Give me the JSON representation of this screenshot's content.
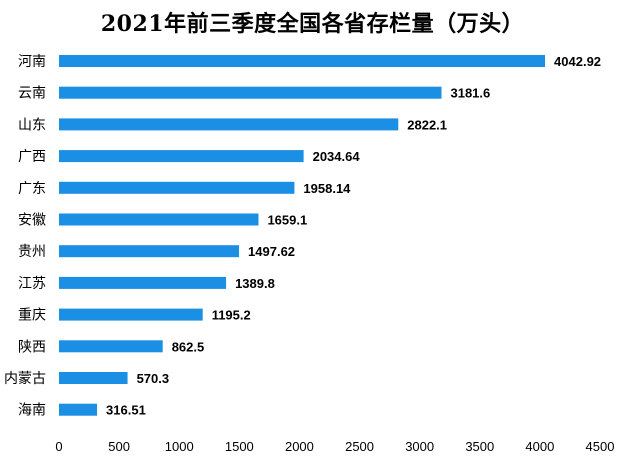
{
  "chart_data": {
    "type": "bar",
    "orientation": "horizontal",
    "title": "2021年前三季度全国各省存栏量（万头）",
    "categories": [
      "河南",
      "云南",
      "山东",
      "广西",
      "广东",
      "安徽",
      "贵州",
      "江苏",
      "重庆",
      "陕西",
      "内蒙古",
      "海南"
    ],
    "values": [
      4042.92,
      3181.6,
      2822.1,
      2034.64,
      1958.14,
      1659.1,
      1497.62,
      1389.8,
      1195.2,
      862.5,
      570.3,
      316.51
    ],
    "value_labels": [
      "4042.92",
      "3181.6",
      "2822.1",
      "2034.64",
      "1958.14",
      "1659.1",
      "1497.62",
      "1389.8",
      "1195.2",
      "862.5",
      "570.3",
      "316.51"
    ],
    "x_ticks": [
      "0",
      "500",
      "1000",
      "1500",
      "2000",
      "2500",
      "3000",
      "3500",
      "4000",
      "4500"
    ],
    "xlim": [
      0,
      4500
    ],
    "bar_color": "#1a8fe3",
    "grid": false,
    "legend": "none"
  }
}
